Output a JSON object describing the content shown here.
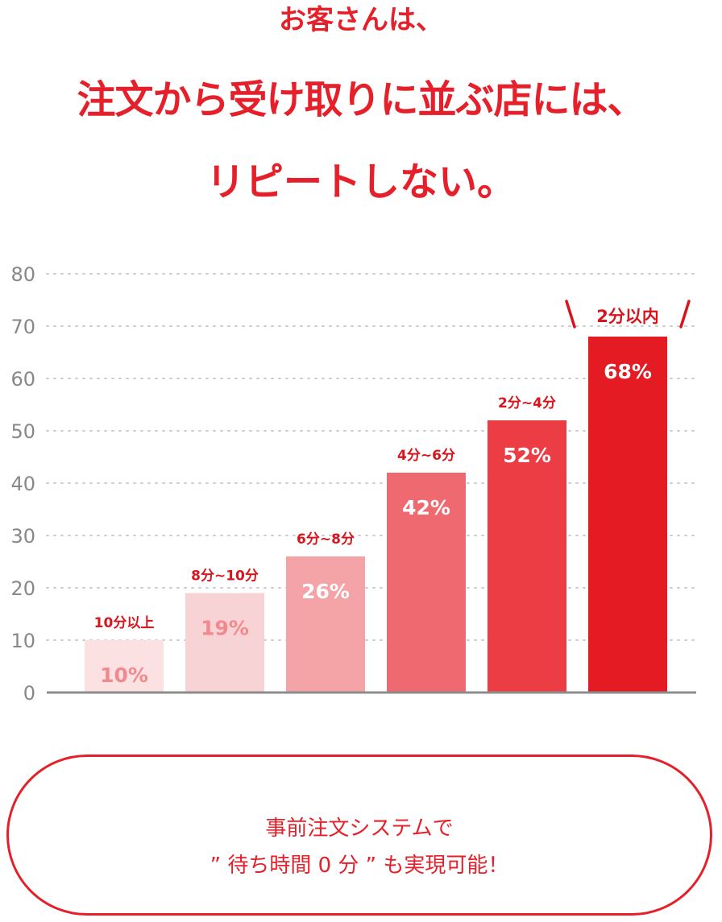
{
  "headline": {
    "line1": "お客さんは、",
    "line2": "注文から受け取りに並ぶ店には、",
    "line3": "リピートしない。",
    "color": "#e5202a"
  },
  "chart_data": {
    "type": "bar",
    "categories": [
      "10分以上",
      "8分~10分",
      "6分~8分",
      "4分~6分",
      "2分~4分",
      "2分以内"
    ],
    "values": [
      10,
      19,
      26,
      42,
      52,
      68
    ],
    "value_labels": [
      "10%",
      "19%",
      "26%",
      "42%",
      "52%",
      "68%"
    ],
    "highlight_label": "2分以内",
    "bar_colors": [
      "#fbe1e2",
      "#f8d3d5",
      "#f4a3a6",
      "#ef6a70",
      "#ec3d45",
      "#e41b23"
    ],
    "value_label_colors": [
      "#f08a8f",
      "#f08a8f",
      "#ffffff",
      "#ffffff",
      "#ffffff",
      "#ffffff"
    ],
    "ylim": [
      0,
      80
    ],
    "yticks": [
      0,
      10,
      20,
      30,
      40,
      50,
      60,
      70,
      80
    ],
    "grid": true,
    "xlabel": "",
    "ylabel": "",
    "title": ""
  },
  "callout": {
    "line1": "事前注文システムで",
    "line2": "” 待ち時間 0 分 ” も実現可能！"
  }
}
